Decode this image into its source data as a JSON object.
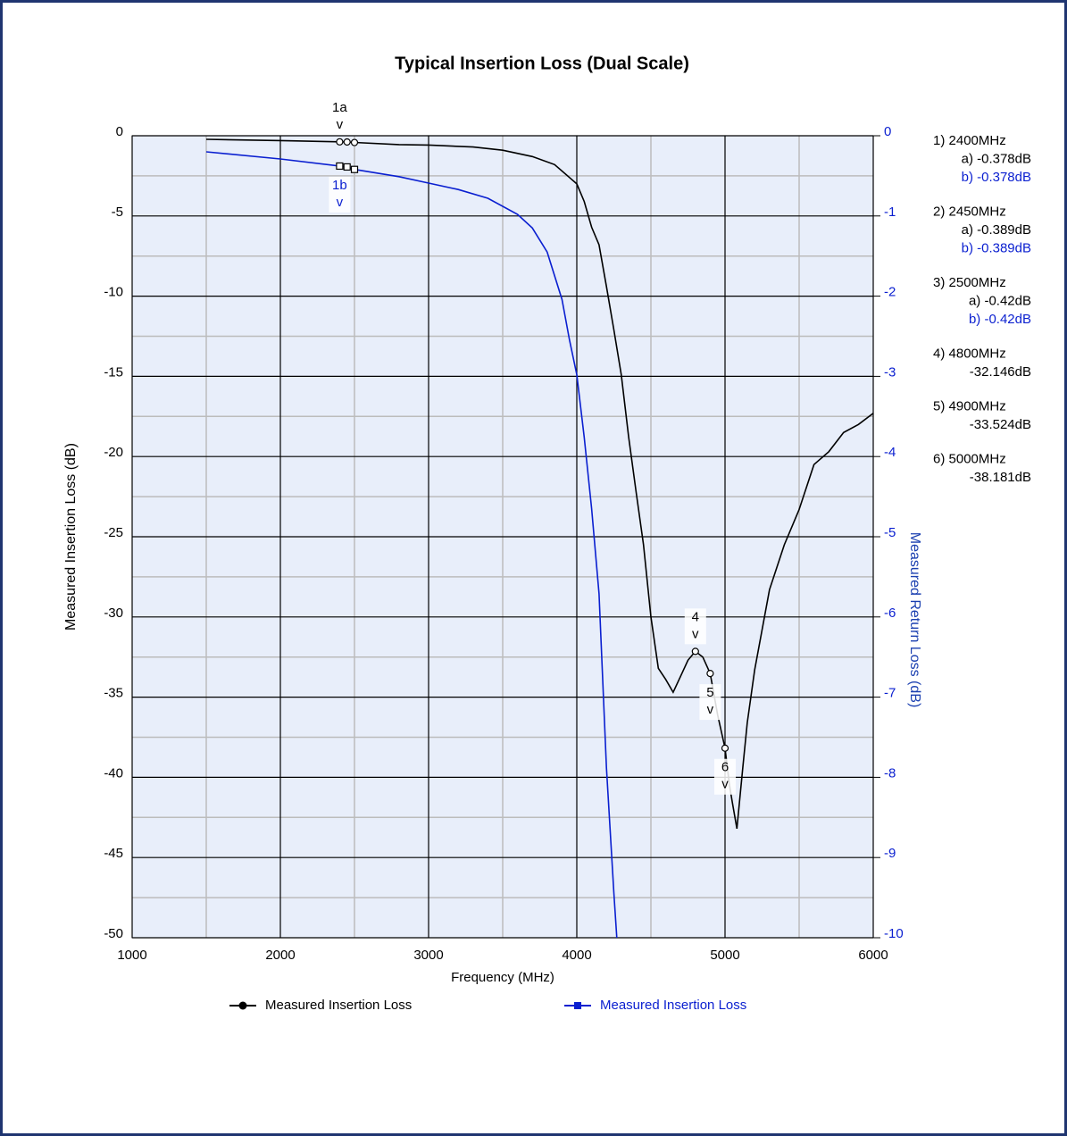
{
  "chart_data": {
    "type": "line",
    "title": "Typical Insertion Loss (Dual Scale)",
    "x_label": "Frequency (MHz)",
    "y_label": "Measured Insertion Loss (dB)",
    "y2_label": "Measured Return Loss  (dB)",
    "xlim": [
      1000,
      6000
    ],
    "xticks": [
      1000,
      2000,
      3000,
      4000,
      5000,
      6000
    ],
    "x_minor_ticks": [
      1500,
      2500,
      3500,
      4500,
      5500
    ],
    "ylim": [
      -50,
      0
    ],
    "yticks": [
      0,
      -5,
      -10,
      -15,
      -20,
      -25,
      -30,
      -35,
      -40,
      -45,
      -50
    ],
    "y_minor_ticks": [
      -2.5,
      -7.5,
      -12.5,
      -17.5,
      -22.5,
      -27.5,
      -32.5,
      -37.5,
      -42.5,
      -47.5
    ],
    "y2lim": [
      -10,
      0
    ],
    "y2ticks": [
      0,
      -1,
      -2,
      -3,
      -4,
      -5,
      -6,
      -7,
      -8,
      -9,
      -10
    ],
    "grid": true,
    "series": [
      {
        "name": "Measured Insertion Loss",
        "color": "#000000",
        "axis": "y",
        "marker": "circle",
        "x": [
          1500,
          2000,
          2400,
          2450,
          2500,
          2800,
          3000,
          3300,
          3500,
          3700,
          3850,
          3950,
          4000,
          4050,
          4100,
          4150,
          4200,
          4250,
          4300,
          4350,
          4400,
          4450,
          4500,
          4550,
          4600,
          4650,
          4700,
          4750,
          4800,
          4850,
          4900,
          4950,
          5000,
          5030,
          5050,
          5080,
          5120,
          5150,
          5200,
          5300,
          5400,
          5500,
          5600,
          5700,
          5800,
          5900,
          6000
        ],
        "values": [
          -0.22,
          -0.3,
          -0.378,
          -0.389,
          -0.42,
          -0.55,
          -0.58,
          -0.7,
          -0.9,
          -1.3,
          -1.8,
          -2.6,
          -3.0,
          -4.1,
          -5.7,
          -6.8,
          -9.4,
          -12.1,
          -14.9,
          -18.8,
          -22.2,
          -25.5,
          -30,
          -33.2,
          -33.9,
          -34.7,
          -33.7,
          -32.7,
          -32.146,
          -32.5,
          -33.524,
          -36.1,
          -38.181,
          -40.5,
          -41.6,
          -43.2,
          -39.4,
          -36.6,
          -33.3,
          -28.3,
          -25.5,
          -23.3,
          -20.5,
          -19.7,
          -18.5,
          -18.0,
          -17.3
        ],
        "markers": [
          {
            "label": "1a",
            "pointer": "v",
            "placement": "above",
            "x": [
              2400,
              2450,
              2500
            ],
            "values": [
              -0.378,
              -0.389,
              -0.42
            ]
          },
          {
            "label": "4",
            "pointer": "v",
            "placement": "above",
            "x": [
              4800
            ],
            "values": [
              -32.146
            ]
          },
          {
            "label": "5",
            "pointer": "v",
            "placement": "below",
            "x": [
              4900
            ],
            "values": [
              -33.524
            ]
          },
          {
            "label": "6",
            "pointer": "v",
            "placement": "below",
            "x": [
              5000
            ],
            "values": [
              -38.181
            ]
          }
        ]
      },
      {
        "name": "Measured Insertion Loss",
        "color": "#0a1fd0",
        "axis": "y2",
        "marker": "square",
        "x": [
          1500,
          2000,
          2400,
          2450,
          2500,
          2800,
          3000,
          3200,
          3400,
          3600,
          3700,
          3800,
          3900,
          3950,
          4000,
          4050,
          4100,
          4150,
          4200,
          4250,
          4270
        ],
        "values": [
          -0.2,
          -0.29,
          -0.378,
          -0.389,
          -0.42,
          -0.51,
          -0.59,
          -0.67,
          -0.78,
          -0.98,
          -1.15,
          -1.45,
          -2.04,
          -2.54,
          -2.98,
          -3.76,
          -4.65,
          -5.71,
          -7.88,
          -9.44,
          -10.0
        ],
        "markers": [
          {
            "label": "1b",
            "pointer": "v",
            "placement": "below",
            "x": [
              2400,
              2450,
              2500
            ],
            "values": [
              -0.378,
              -0.389,
              -0.42
            ]
          }
        ]
      }
    ],
    "readout": [
      [
        "1) 2400MHz",
        "a) -0.378dB",
        "b) -0.378dB"
      ],
      [
        "2) 2450MHz",
        "a) -0.389dB",
        "b) -0.389dB"
      ],
      [
        "3) 2500MHz",
        "a) -0.42dB",
        "b) -0.42dB"
      ],
      [
        "4) 4800MHz",
        "-32.146dB"
      ],
      [
        "5) 4900MHz",
        "-33.524dB"
      ],
      [
        "6) 5000MHz",
        "-38.181dB"
      ]
    ]
  }
}
